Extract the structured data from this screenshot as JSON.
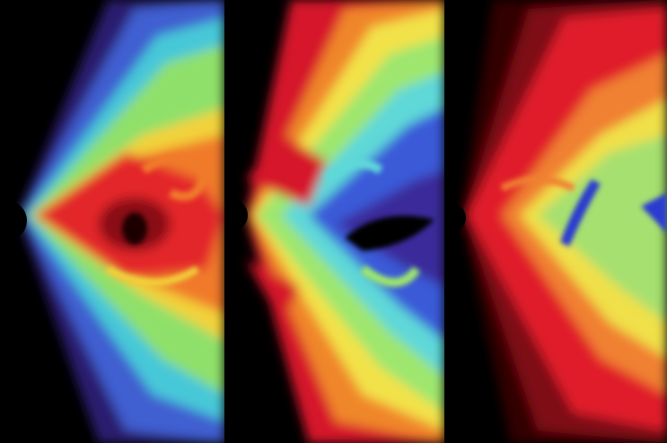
{
  "figure": {
    "background": "#000000",
    "panel_count": 3,
    "panels": [
      {
        "id": "panel-1",
        "palette": {
          "outer": "#2a1a6e",
          "mid_blue": "#3f5fd0",
          "cyan": "#46c8d8",
          "green": "#8fe06a",
          "yellow": "#f2d23a",
          "orange": "#f07a2a",
          "red": "#e3262a",
          "dark_red": "#8a0f14",
          "core": "#000000"
        }
      },
      {
        "id": "panel-2",
        "palette": {
          "outer_red": "#d6182a",
          "orange": "#f0862a",
          "yellow": "#f2e24a",
          "green": "#9ee66e",
          "cyan": "#5fd8d8",
          "blue": "#3a5ad8",
          "violet": "#3a2a9a",
          "core": "#000000"
        }
      },
      {
        "id": "panel-3",
        "palette": {
          "outer_dark": "#300006",
          "dark_red": "#7e0c18",
          "red": "#e01a2a",
          "orange": "#f08030",
          "yellow": "#f0e048",
          "green": "#a6e070",
          "blue": "#2a3ad0",
          "core": "#000000"
        }
      }
    ]
  }
}
